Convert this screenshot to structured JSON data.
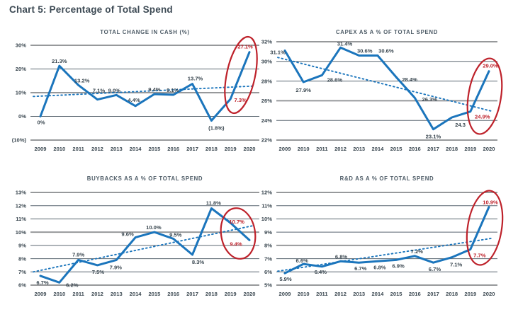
{
  "title": "Chart 5: Percentage of Total Spend",
  "colors": {
    "line_blue": "#1b75bc",
    "trend_blue": "#1b75bc",
    "highlight_red": "#be222b",
    "label_dark": "#3a4750",
    "subtitle_gray": "#4d5b66",
    "grid_thin": "#5a6670",
    "grid_thick": "#97999b"
  },
  "chart_data": [
    {
      "type": "line",
      "title": "TOTAL CHANGE IN CASH (%)",
      "categories": [
        "2009",
        "2010",
        "2011",
        "2012",
        "2013",
        "2014",
        "2015",
        "2016",
        "2017",
        "2018",
        "2019",
        "2020"
      ],
      "values": [
        0,
        21.3,
        13.2,
        7.1,
        9.0,
        4.4,
        9.4,
        9.1,
        13.7,
        -1.8,
        7.3,
        27.1
      ],
      "point_labels": [
        "0%",
        "21.3%",
        "13.2%",
        "7.1%",
        "9.0%",
        "4.4%",
        "9.4%",
        "9.1%",
        "13.7%",
        "(1.8%)",
        "7.3%",
        "27.1%"
      ],
      "y_ticks": [
        {
          "label": "30%",
          "value": 30
        },
        {
          "label": "20%",
          "value": 20
        },
        {
          "label": "10%",
          "value": 10
        },
        {
          "label": "0%",
          "value": 0
        },
        {
          "label": "(10%)",
          "value": -10
        }
      ],
      "trend": {
        "start": 8.4,
        "end": 12.8
      },
      "highlight_from": 10,
      "circled_years": [
        "2019",
        "2020"
      ],
      "grid": true,
      "legend": "none"
    },
    {
      "type": "line",
      "title": "CAPEX AS A % OF TOTAL SPEND",
      "categories": [
        "2009",
        "2010",
        "2011",
        "2012",
        "2013",
        "2014",
        "2015",
        "2016",
        "2017",
        "2018",
        "2019",
        "2020"
      ],
      "values": [
        31.1,
        27.9,
        28.6,
        31.4,
        30.6,
        30.6,
        28.4,
        26.3,
        23.1,
        24.3,
        24.9,
        29.0
      ],
      "point_labels": [
        "31.1%",
        "27.9%",
        "28.6%",
        "31.4%",
        "30.6%",
        "30.6%",
        "28.4%",
        "26.3%",
        "23.1%",
        "24.3",
        "24.9%",
        "29.0%"
      ],
      "y_ticks": [
        {
          "label": "32%",
          "value": 32
        },
        {
          "label": "30%",
          "value": 30
        },
        {
          "label": "28%",
          "value": 28
        },
        {
          "label": "26%",
          "value": 26
        },
        {
          "label": "24%",
          "value": 24
        },
        {
          "label": "22%",
          "value": 22
        }
      ],
      "trend": {
        "start": 30.4,
        "end": 24.9
      },
      "highlight_from": 10,
      "circled_years": [
        "2019",
        "2020"
      ],
      "grid": true,
      "legend": "none"
    },
    {
      "type": "line",
      "title": "BUYBACKS AS A % OF TOTAL SPEND",
      "categories": [
        "2009",
        "2010",
        "2011",
        "2012",
        "2013",
        "2014",
        "2015",
        "2016",
        "2017",
        "2018",
        "2019",
        "2020"
      ],
      "values": [
        6.7,
        6.2,
        7.9,
        7.5,
        7.9,
        9.6,
        10.0,
        9.5,
        8.3,
        11.8,
        10.7,
        9.4
      ],
      "point_labels": [
        "6.7%",
        "6.2%",
        "7.9%",
        "7.5%",
        "7.9%",
        "9.6%",
        "10.0%",
        "9.5%",
        "8.3%",
        "11.8%",
        "10.7%",
        "9.4%"
      ],
      "y_ticks": [
        {
          "label": "13%",
          "value": 13
        },
        {
          "label": "12%",
          "value": 12
        },
        {
          "label": "11%",
          "value": 11
        },
        {
          "label": "10%",
          "value": 10
        },
        {
          "label": "9%",
          "value": 9
        },
        {
          "label": "8%",
          "value": 8
        },
        {
          "label": "7%",
          "value": 7
        },
        {
          "label": "6%",
          "value": 6
        }
      ],
      "trend": {
        "start": 7.0,
        "end": 10.5
      },
      "highlight_from": 10,
      "circled_years": [
        "2019",
        "2020"
      ],
      "grid": true,
      "legend": "none"
    },
    {
      "type": "line",
      "title": "R&D AS A % OF TOTAL SPEND",
      "categories": [
        "2009",
        "2010",
        "2011",
        "2012",
        "2013",
        "2014",
        "2015",
        "2016",
        "2017",
        "2018",
        "2019",
        "2020"
      ],
      "values": [
        5.9,
        6.6,
        6.4,
        6.8,
        6.7,
        6.8,
        6.9,
        7.2,
        6.7,
        7.1,
        7.7,
        10.9
      ],
      "point_labels": [
        "5.9%",
        "6.6%",
        "6.4%",
        "6.8%",
        "6.7%",
        "6.8%",
        "6.9%",
        "7.2%",
        "6.7%",
        "7.1%",
        "7.7%",
        "10.9%"
      ],
      "y_ticks": [
        {
          "label": "12%",
          "value": 12
        },
        {
          "label": "11%",
          "value": 11
        },
        {
          "label": "10%",
          "value": 10
        },
        {
          "label": "9%",
          "value": 9
        },
        {
          "label": "8%",
          "value": 8
        },
        {
          "label": "7%",
          "value": 7
        },
        {
          "label": "6%",
          "value": 6
        },
        {
          "label": "5%",
          "value": 5
        }
      ],
      "trend": {
        "start": 6.05,
        "end": 8.55
      },
      "highlight_from": 10,
      "circled_years": [
        "2019",
        "2020"
      ],
      "grid": true,
      "legend": "none"
    }
  ]
}
